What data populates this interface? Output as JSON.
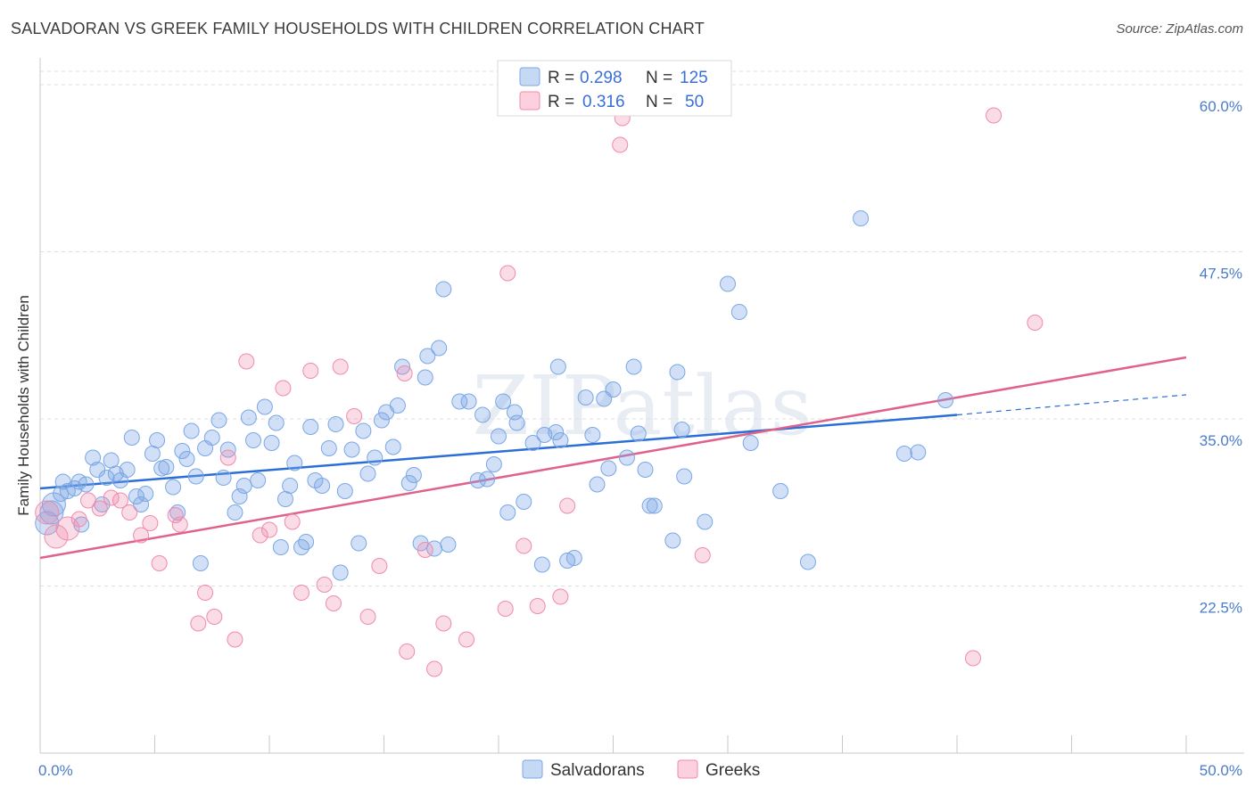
{
  "title": "SALVADORAN VS GREEK FAMILY HOUSEHOLDS WITH CHILDREN CORRELATION CHART",
  "source": "Source: ZipAtlas.com",
  "watermark": "ZIPatlas",
  "legend": {
    "rows": [
      {
        "r_label": "R =",
        "r_value": "0.298",
        "n_label": "N =",
        "n_value": "125",
        "color": "#7aa7e6"
      },
      {
        "r_label": "R =",
        "r_value": "0.316",
        "n_label": "N =",
        "n_value": "50",
        "color": "#f08bab"
      }
    ]
  },
  "bottom_legend": [
    {
      "label": "Salvadorans",
      "color": "#7aa7e6"
    },
    {
      "label": "Greeks",
      "color": "#f08bab"
    }
  ],
  "chart_data": {
    "type": "scatter",
    "title": "SALVADORAN VS GREEK FAMILY HOUSEHOLDS WITH CHILDREN CORRELATION CHART",
    "xlabel": "",
    "ylabel": "Family Households with Children",
    "xlim": [
      0,
      50
    ],
    "ylim": [
      10,
      61
    ],
    "x_tick_labels": [
      "0.0%",
      "50.0%"
    ],
    "y_ticks": [
      22.5,
      35.0,
      47.5,
      60.0
    ],
    "y_tick_labels": [
      "22.5%",
      "35.0%",
      "47.5%",
      "60.0%"
    ],
    "grid": "horizontal dashed",
    "series": [
      {
        "name": "Salvadorans",
        "color": "#7aa7e6",
        "line_color": "#2b6fd6",
        "trend": {
          "x0": 0,
          "y0": 29.8,
          "x1": 40,
          "y1": 35.3,
          "dash_to_x": 50,
          "dash_to_y": 36.8
        },
        "points": [
          [
            0.3,
            27.2
          ],
          [
            0.5,
            28.0
          ],
          [
            0.6,
            28.6
          ],
          [
            0.9,
            29.4
          ],
          [
            1.0,
            30.3
          ],
          [
            1.2,
            29.6
          ],
          [
            1.5,
            29.8
          ],
          [
            1.7,
            30.3
          ],
          [
            1.8,
            27.1
          ],
          [
            2.0,
            30.1
          ],
          [
            2.3,
            32.1
          ],
          [
            2.5,
            31.2
          ],
          [
            2.7,
            28.6
          ],
          [
            2.9,
            30.6
          ],
          [
            3.1,
            31.9
          ],
          [
            3.3,
            30.9
          ],
          [
            3.5,
            30.4
          ],
          [
            3.8,
            31.2
          ],
          [
            4.0,
            33.6
          ],
          [
            4.2,
            29.2
          ],
          [
            4.4,
            28.6
          ],
          [
            4.6,
            29.4
          ],
          [
            4.9,
            32.4
          ],
          [
            5.1,
            33.4
          ],
          [
            5.3,
            31.3
          ],
          [
            5.5,
            31.4
          ],
          [
            5.8,
            29.9
          ],
          [
            6.0,
            28.0
          ],
          [
            6.2,
            32.6
          ],
          [
            6.4,
            32.0
          ],
          [
            6.6,
            34.1
          ],
          [
            6.8,
            30.7
          ],
          [
            7.0,
            24.2
          ],
          [
            7.2,
            32.8
          ],
          [
            7.5,
            33.6
          ],
          [
            7.8,
            34.9
          ],
          [
            8.0,
            30.6
          ],
          [
            8.2,
            32.7
          ],
          [
            8.5,
            28.0
          ],
          [
            8.7,
            29.2
          ],
          [
            8.9,
            30.0
          ],
          [
            9.1,
            35.1
          ],
          [
            9.3,
            33.4
          ],
          [
            9.5,
            30.4
          ],
          [
            9.8,
            35.9
          ],
          [
            10.1,
            33.2
          ],
          [
            10.3,
            34.7
          ],
          [
            10.5,
            25.4
          ],
          [
            10.7,
            29.0
          ],
          [
            10.9,
            30.0
          ],
          [
            11.1,
            31.7
          ],
          [
            11.4,
            25.4
          ],
          [
            11.6,
            25.8
          ],
          [
            11.8,
            34.4
          ],
          [
            12.0,
            30.4
          ],
          [
            12.3,
            30.0
          ],
          [
            12.6,
            32.8
          ],
          [
            12.9,
            34.6
          ],
          [
            13.1,
            23.5
          ],
          [
            13.3,
            29.6
          ],
          [
            13.6,
            32.7
          ],
          [
            13.9,
            25.7
          ],
          [
            14.1,
            34.1
          ],
          [
            14.3,
            30.9
          ],
          [
            14.6,
            32.1
          ],
          [
            14.9,
            34.9
          ],
          [
            15.1,
            35.5
          ],
          [
            15.4,
            32.9
          ],
          [
            15.6,
            36.0
          ],
          [
            15.8,
            38.9
          ],
          [
            16.1,
            30.2
          ],
          [
            16.3,
            30.8
          ],
          [
            16.6,
            25.7
          ],
          [
            16.8,
            38.1
          ],
          [
            16.9,
            39.7
          ],
          [
            17.2,
            25.3
          ],
          [
            17.4,
            40.3
          ],
          [
            17.6,
            44.7
          ],
          [
            17.8,
            25.6
          ],
          [
            18.3,
            36.3
          ],
          [
            18.7,
            36.3
          ],
          [
            19.1,
            30.4
          ],
          [
            19.3,
            35.3
          ],
          [
            19.5,
            30.5
          ],
          [
            19.8,
            31.6
          ],
          [
            20.0,
            33.7
          ],
          [
            20.2,
            36.3
          ],
          [
            20.4,
            28.0
          ],
          [
            20.7,
            35.5
          ],
          [
            20.8,
            34.7
          ],
          [
            21.1,
            28.8
          ],
          [
            21.5,
            33.2
          ],
          [
            21.9,
            24.1
          ],
          [
            22.0,
            33.8
          ],
          [
            22.5,
            34.0
          ],
          [
            22.6,
            38.9
          ],
          [
            22.7,
            33.4
          ],
          [
            23.0,
            24.4
          ],
          [
            23.3,
            24.6
          ],
          [
            23.8,
            36.6
          ],
          [
            24.1,
            33.8
          ],
          [
            24.3,
            30.1
          ],
          [
            24.6,
            36.5
          ],
          [
            24.8,
            31.3
          ],
          [
            25.0,
            37.2
          ],
          [
            25.6,
            32.1
          ],
          [
            25.9,
            38.9
          ],
          [
            26.1,
            33.9
          ],
          [
            26.4,
            31.2
          ],
          [
            26.6,
            28.5
          ],
          [
            26.8,
            28.5
          ],
          [
            27.6,
            25.9
          ],
          [
            27.8,
            38.5
          ],
          [
            28.0,
            34.2
          ],
          [
            28.1,
            30.7
          ],
          [
            29.0,
            27.3
          ],
          [
            30.0,
            45.1
          ],
          [
            30.5,
            43.0
          ],
          [
            31.0,
            33.2
          ],
          [
            32.3,
            29.6
          ],
          [
            33.5,
            24.3
          ],
          [
            35.8,
            50.0
          ],
          [
            37.7,
            32.4
          ],
          [
            38.3,
            32.5
          ],
          [
            39.5,
            36.4
          ]
        ]
      },
      {
        "name": "Greeks",
        "color": "#f08bab",
        "line_color": "#e0628a",
        "trend": {
          "x0": 0,
          "y0": 24.6,
          "x1": 50,
          "y1": 39.6
        },
        "points": [
          [
            0.3,
            28.0
          ],
          [
            0.7,
            26.2
          ],
          [
            1.2,
            26.8
          ],
          [
            1.7,
            27.5
          ],
          [
            2.1,
            28.9
          ],
          [
            2.6,
            28.3
          ],
          [
            3.1,
            29.1
          ],
          [
            3.5,
            28.9
          ],
          [
            3.9,
            28.0
          ],
          [
            4.4,
            26.3
          ],
          [
            4.8,
            27.2
          ],
          [
            5.2,
            24.2
          ],
          [
            5.9,
            27.8
          ],
          [
            6.1,
            27.1
          ],
          [
            6.9,
            19.7
          ],
          [
            7.2,
            22.0
          ],
          [
            7.6,
            20.2
          ],
          [
            8.2,
            32.1
          ],
          [
            8.5,
            18.5
          ],
          [
            9.0,
            39.3
          ],
          [
            9.6,
            26.3
          ],
          [
            10.0,
            26.7
          ],
          [
            10.6,
            37.3
          ],
          [
            11.0,
            27.3
          ],
          [
            11.4,
            22.0
          ],
          [
            11.8,
            38.6
          ],
          [
            12.4,
            22.6
          ],
          [
            12.8,
            21.2
          ],
          [
            13.1,
            38.9
          ],
          [
            13.7,
            35.2
          ],
          [
            14.3,
            20.2
          ],
          [
            14.8,
            24.0
          ],
          [
            15.9,
            38.4
          ],
          [
            16.0,
            17.6
          ],
          [
            16.8,
            25.2
          ],
          [
            17.2,
            16.3
          ],
          [
            17.6,
            19.7
          ],
          [
            18.6,
            18.5
          ],
          [
            20.3,
            20.8
          ],
          [
            20.4,
            45.9
          ],
          [
            21.1,
            25.5
          ],
          [
            21.7,
            21.0
          ],
          [
            22.7,
            21.7
          ],
          [
            23.0,
            28.5
          ],
          [
            25.3,
            55.5
          ],
          [
            25.4,
            57.5
          ],
          [
            28.9,
            24.8
          ],
          [
            40.7,
            17.1
          ],
          [
            41.6,
            57.7
          ],
          [
            43.4,
            42.2
          ]
        ]
      }
    ]
  }
}
